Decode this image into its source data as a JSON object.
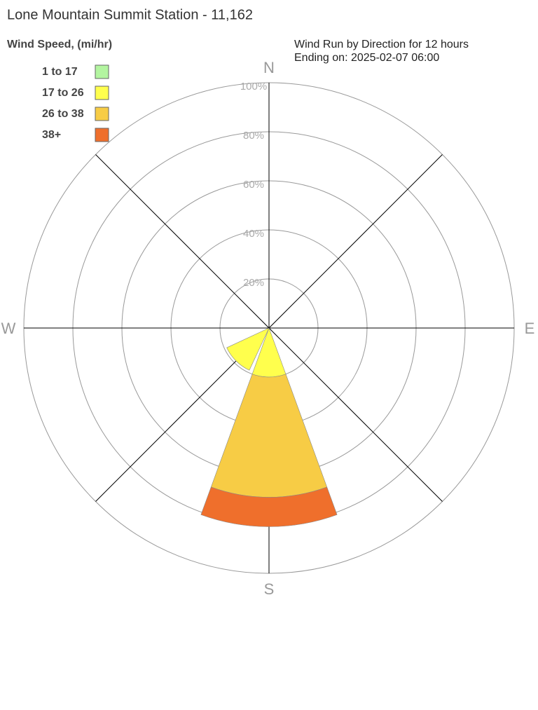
{
  "chart_data": {
    "type": "wind_rose",
    "title": "Lone Mountain Summit Station - 11,162",
    "subtitle": [
      "Wind Run by Direction for 12 hours",
      "Ending on: 2025-02-07 06:00"
    ],
    "legend_title": "Wind Speed, (mi/hr)",
    "categories": [
      "N",
      null,
      "E",
      null,
      "S",
      null,
      "W",
      null
    ],
    "series": [
      {
        "name": "1 to 17",
        "color": "#b3f5a0",
        "values": [
          0,
          0,
          0,
          0,
          0,
          0,
          0,
          0
        ]
      },
      {
        "name": "17 to 26",
        "color": "#ffff4d",
        "values": [
          0,
          0,
          0,
          0,
          20,
          19,
          0,
          0
        ]
      },
      {
        "name": "26 to 38",
        "color": "#f7cc45",
        "values": [
          0,
          0,
          0,
          0,
          49,
          0,
          0,
          0
        ]
      },
      {
        "name": "38+",
        "color": "#ef6f2c",
        "values": [
          0,
          0,
          0,
          0,
          12,
          0,
          0,
          0
        ]
      }
    ],
    "rlim": [
      0,
      100
    ],
    "rticks": [
      {
        "value": 20,
        "label": "20%"
      },
      {
        "value": 40,
        "label": "40%"
      },
      {
        "value": 60,
        "label": "60%"
      },
      {
        "value": 80,
        "label": "80%"
      },
      {
        "value": 100,
        "label": "100%"
      }
    ],
    "grid": true,
    "legend_position": "upper left"
  }
}
